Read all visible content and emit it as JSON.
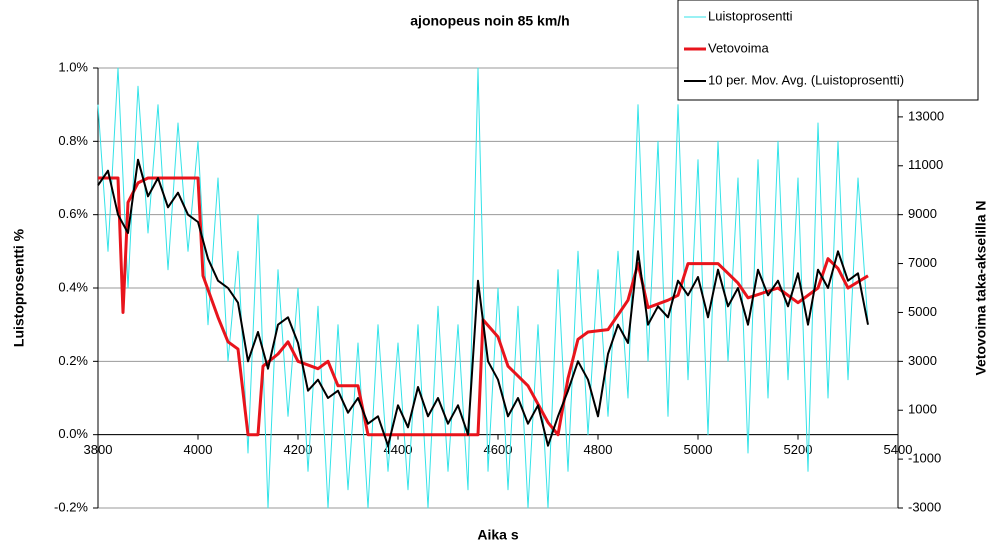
{
  "chart_data": {
    "type": "line",
    "title": "ajonopeus noin 85 km/h",
    "x_label": "Aika s",
    "y_label": "Luistoprosentti %",
    "y2_label": "Vetovoima taka-akselilla N",
    "xlim": [
      3800,
      5400
    ],
    "xticks": [
      3800,
      4000,
      4200,
      4400,
      4600,
      4800,
      5000,
      5200,
      5400
    ],
    "ylim": [
      -0.2,
      1.0
    ],
    "yticks": [
      {
        "value": -0.2,
        "label": "-0.2%"
      },
      {
        "value": 0.0,
        "label": "0.0%"
      },
      {
        "value": 0.2,
        "label": "0.2%"
      },
      {
        "value": 0.4,
        "label": "0.4%"
      },
      {
        "value": 0.6,
        "label": "0.6%"
      },
      {
        "value": 0.8,
        "label": "0.8%"
      },
      {
        "value": 1.0,
        "label": "1.0%"
      }
    ],
    "y2lim": [
      -3000,
      15000
    ],
    "y2ticks": [
      -3000,
      -1000,
      1000,
      3000,
      5000,
      7000,
      9000,
      11000,
      13000
    ],
    "grid": true,
    "legend": "top-right",
    "series": [
      {
        "name": "Luistoprosentti",
        "color": "#33e3e8",
        "width": 1,
        "x": [
          3800,
          3820,
          3840,
          3860,
          3880,
          3900,
          3920,
          3940,
          3960,
          3980,
          4000,
          4020,
          4040,
          4060,
          4080,
          4100,
          4120,
          4140,
          4160,
          4180,
          4200,
          4220,
          4240,
          4260,
          4280,
          4300,
          4320,
          4340,
          4360,
          4380,
          4400,
          4420,
          4440,
          4460,
          4480,
          4500,
          4520,
          4540,
          4560,
          4580,
          4600,
          4620,
          4640,
          4660,
          4680,
          4700,
          4720,
          4740,
          4760,
          4780,
          4800,
          4820,
          4840,
          4860,
          4880,
          4900,
          4920,
          4940,
          4960,
          4980,
          5000,
          5020,
          5040,
          5060,
          5080,
          5100,
          5120,
          5140,
          5160,
          5180,
          5200,
          5220,
          5240,
          5260,
          5280,
          5300,
          5320,
          5340
        ],
        "values": [
          0.9,
          0.5,
          1.0,
          0.4,
          0.95,
          0.55,
          0.9,
          0.45,
          0.85,
          0.5,
          0.8,
          0.3,
          0.7,
          0.2,
          0.5,
          -0.05,
          0.6,
          -0.2,
          0.45,
          0.05,
          0.4,
          -0.1,
          0.35,
          -0.2,
          0.3,
          -0.15,
          0.25,
          -0.2,
          0.3,
          -0.1,
          0.25,
          -0.15,
          0.3,
          -0.2,
          0.35,
          -0.1,
          0.3,
          -0.15,
          1.0,
          -0.1,
          0.4,
          -0.15,
          0.35,
          -0.2,
          0.3,
          -0.2,
          0.45,
          -0.1,
          0.5,
          0.0,
          0.45,
          0.05,
          0.5,
          0.1,
          0.9,
          0.2,
          0.8,
          0.05,
          0.9,
          0.15,
          0.75,
          0.0,
          0.8,
          0.2,
          0.7,
          -0.05,
          0.75,
          0.1,
          0.8,
          0.15,
          0.7,
          -0.1,
          0.85,
          0.1,
          0.8,
          0.15,
          0.7,
          0.3
        ]
      },
      {
        "name": "Vetovoima",
        "color": "#e8141c",
        "width": 3,
        "axis": "y2",
        "x": [
          3800,
          3840,
          3850,
          3860,
          3880,
          3900,
          4000,
          4010,
          4040,
          4060,
          4080,
          4100,
          4120,
          4130,
          4160,
          4180,
          4200,
          4240,
          4260,
          4280,
          4320,
          4340,
          4560,
          4570,
          4600,
          4620,
          4660,
          4700,
          4720,
          4740,
          4760,
          4780,
          4820,
          4860,
          4880,
          4900,
          4940,
          4960,
          4980,
          5040,
          5080,
          5100,
          5160,
          5200,
          5240,
          5260,
          5280,
          5300,
          5340
        ],
        "values": [
          10500,
          10500,
          5000,
          9500,
          10300,
          10500,
          10500,
          6500,
          4800,
          3800,
          3500,
          0,
          0,
          2800,
          3300,
          3800,
          3000,
          2700,
          3000,
          2000,
          2000,
          0,
          0,
          4700,
          4000,
          2800,
          2000,
          500,
          0,
          2300,
          3900,
          4200,
          4300,
          5500,
          7000,
          5200,
          5500,
          5700,
          7000,
          7000,
          6200,
          5600,
          6000,
          5400,
          6000,
          7200,
          6800,
          6000,
          6500
        ]
      },
      {
        "name": "10 per. Mov. Avg. (Luistoprosentti)",
        "color": "#000000",
        "width": 2,
        "x": [
          3800,
          3820,
          3840,
          3860,
          3880,
          3900,
          3920,
          3940,
          3960,
          3980,
          4000,
          4020,
          4040,
          4060,
          4080,
          4100,
          4120,
          4140,
          4160,
          4180,
          4200,
          4220,
          4240,
          4260,
          4280,
          4300,
          4320,
          4340,
          4360,
          4380,
          4400,
          4420,
          4440,
          4460,
          4480,
          4500,
          4520,
          4540,
          4560,
          4580,
          4600,
          4620,
          4640,
          4660,
          4680,
          4700,
          4720,
          4740,
          4760,
          4780,
          4800,
          4820,
          4840,
          4860,
          4880,
          4900,
          4920,
          4940,
          4960,
          4980,
          5000,
          5020,
          5040,
          5060,
          5080,
          5100,
          5120,
          5140,
          5160,
          5180,
          5200,
          5220,
          5240,
          5260,
          5280,
          5300,
          5320,
          5340
        ],
        "values": [
          0.68,
          0.72,
          0.6,
          0.55,
          0.75,
          0.65,
          0.7,
          0.62,
          0.66,
          0.6,
          0.58,
          0.48,
          0.42,
          0.4,
          0.36,
          0.2,
          0.28,
          0.18,
          0.3,
          0.32,
          0.25,
          0.12,
          0.15,
          0.1,
          0.12,
          0.06,
          0.1,
          0.03,
          0.05,
          -0.03,
          0.08,
          0.02,
          0.13,
          0.05,
          0.1,
          0.03,
          0.08,
          0.0,
          0.42,
          0.2,
          0.15,
          0.05,
          0.1,
          0.03,
          0.08,
          -0.03,
          0.05,
          0.12,
          0.2,
          0.15,
          0.05,
          0.22,
          0.3,
          0.25,
          0.5,
          0.3,
          0.35,
          0.32,
          0.42,
          0.38,
          0.43,
          0.32,
          0.45,
          0.35,
          0.4,
          0.3,
          0.45,
          0.38,
          0.42,
          0.35,
          0.44,
          0.3,
          0.45,
          0.4,
          0.5,
          0.42,
          0.44,
          0.3
        ]
      }
    ]
  }
}
